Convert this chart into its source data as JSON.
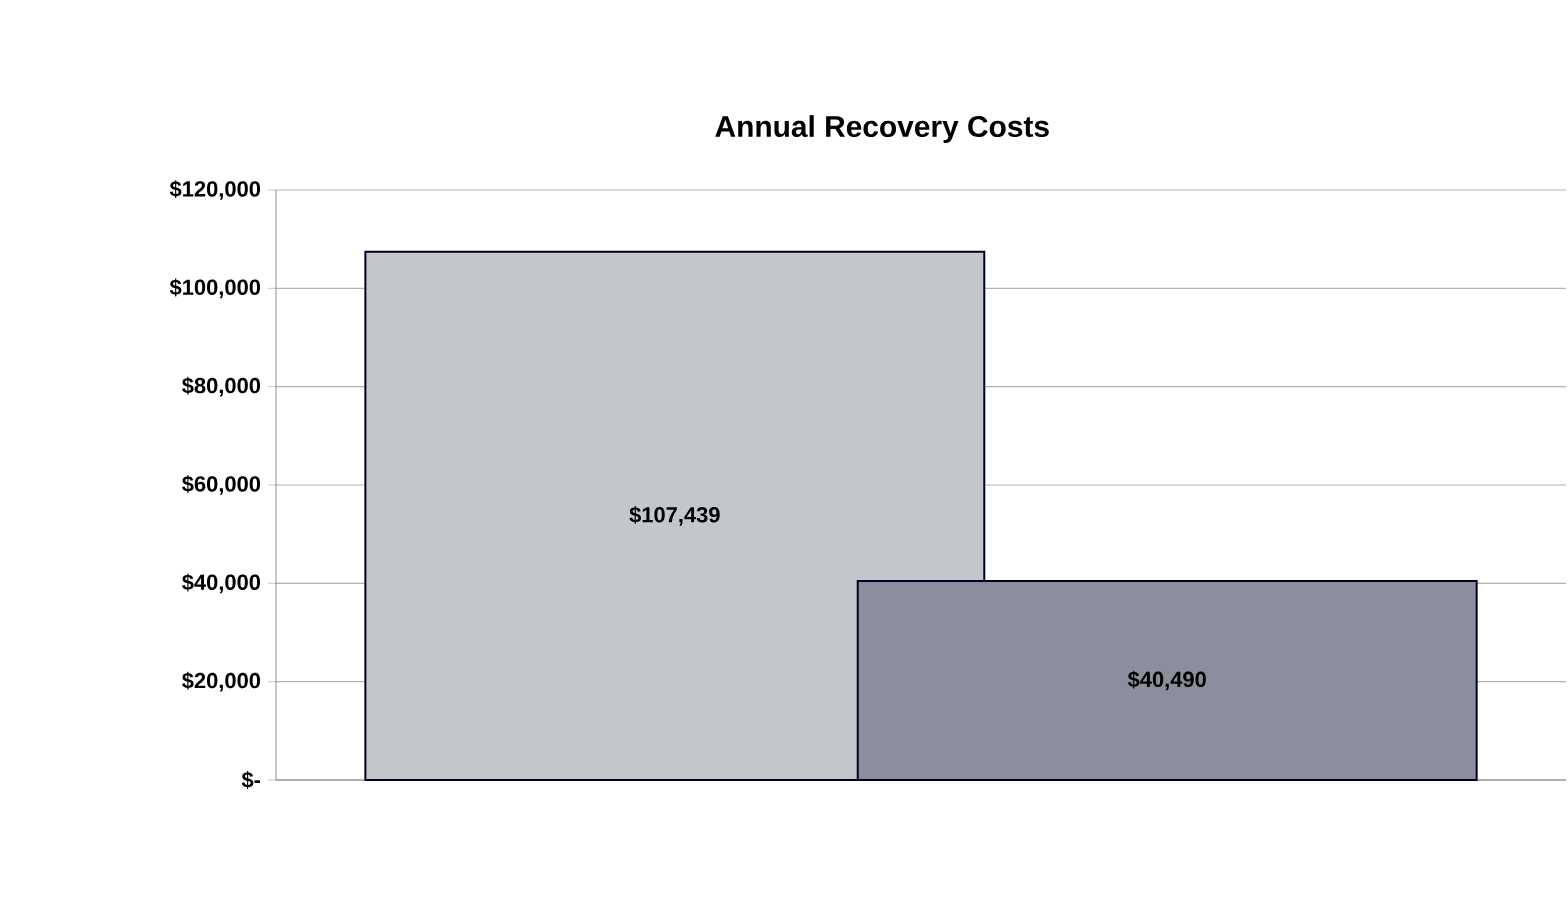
{
  "chart_data": {
    "type": "bar",
    "title": "Annual Recovery Costs",
    "categories": [
      null,
      null
    ],
    "values": [
      107439,
      40490
    ],
    "colors": [
      "#c3c6cb",
      "#8b8e9c"
    ],
    "value_labels": [
      "$107,439",
      "$40,490"
    ],
    "ylim": [
      0,
      120000
    ],
    "yticks": [
      {
        "value": 0,
        "label": "$-"
      },
      {
        "value": 20000,
        "label": "$20,000"
      },
      {
        "value": 40000,
        "label": "$40,000"
      },
      {
        "value": 60000,
        "label": "$60,000"
      },
      {
        "value": 80000,
        "label": "$80,000"
      },
      {
        "value": 100000,
        "label": "$100,000"
      },
      {
        "value": 120000,
        "label": "$120,000"
      }
    ],
    "grid": "y"
  }
}
